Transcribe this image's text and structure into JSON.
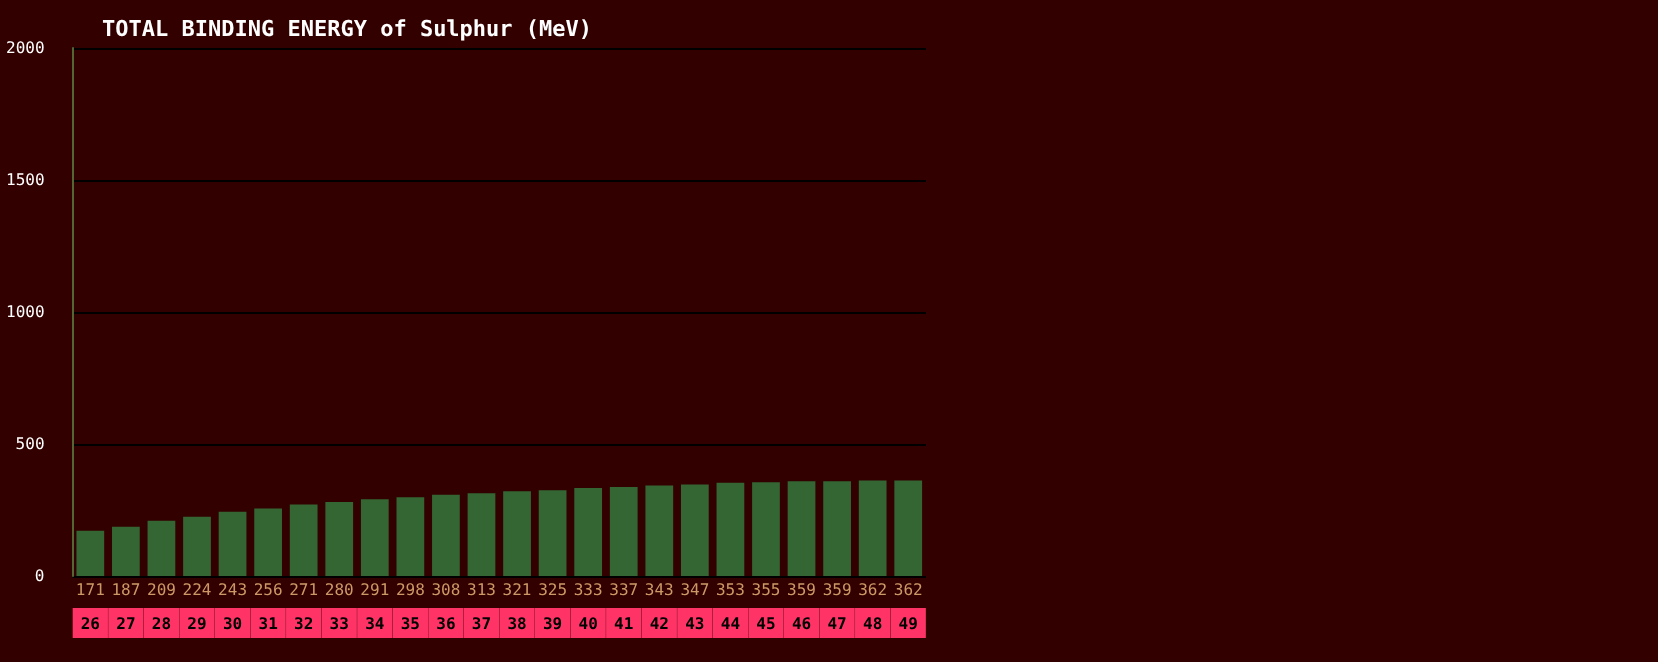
{
  "chart_data": {
    "type": "bar",
    "title": "TOTAL BINDING ENERGY of Sulphur (MeV)",
    "categories": [
      "26",
      "27",
      "28",
      "29",
      "30",
      "31",
      "32",
      "33",
      "34",
      "35",
      "36",
      "37",
      "38",
      "39",
      "40",
      "41",
      "42",
      "43",
      "44",
      "45",
      "46",
      "47",
      "48",
      "49"
    ],
    "values": [
      171,
      187,
      209,
      224,
      243,
      256,
      271,
      280,
      291,
      298,
      308,
      313,
      321,
      325,
      333,
      337,
      343,
      347,
      353,
      355,
      359,
      359,
      362,
      362
    ],
    "color": "#336633",
    "data_labels": true,
    "ylim": [
      0,
      2000
    ],
    "yticks": [
      0,
      500,
      1000,
      1500,
      2000
    ],
    "grid": "y"
  }
}
